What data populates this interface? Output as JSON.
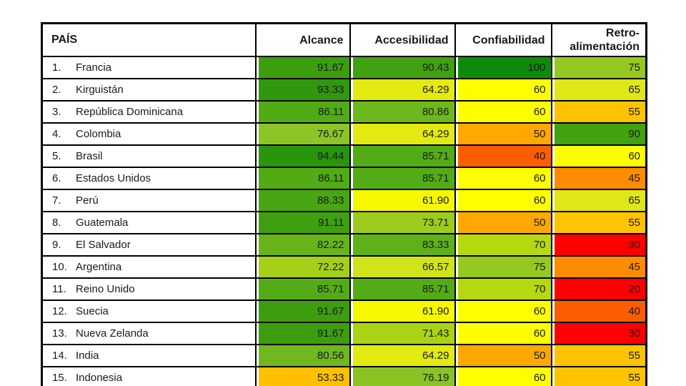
{
  "page": {
    "background": "#ffffff"
  },
  "table": {
    "headers": [
      {
        "label": "PAÍS"
      },
      {
        "label": "Alcance"
      },
      {
        "label": "Accesibilidad"
      },
      {
        "label": "Confiabilidad"
      },
      {
        "label": "Retro-alimentación"
      }
    ],
    "rows": [
      {
        "rank": "1.",
        "country": "Francia",
        "values": [
          "91.67",
          "90.43",
          "100",
          "75"
        ],
        "colors": [
          "#3C9E0F",
          "#41A110",
          "#0E8B0B",
          "#95C921"
        ]
      },
      {
        "rank": "2.",
        "country": "Kirguistán",
        "values": [
          "93.33",
          "64.29",
          "60",
          "65"
        ],
        "colors": [
          "#30980D",
          "#E3EA12",
          "#FEFE00",
          "#DFE717"
        ]
      },
      {
        "rank": "3.",
        "country": "República Dominicana",
        "values": [
          "86.11",
          "80.86",
          "60",
          "55"
        ],
        "colors": [
          "#51AB15",
          "#6DB81D",
          "#FEFE00",
          "#FEC301"
        ]
      },
      {
        "rank": "4.",
        "country": "Colombia",
        "values": [
          "76.67",
          "64.29",
          "50",
          "90"
        ],
        "colors": [
          "#8CC525",
          "#E3EA12",
          "#FFA800",
          "#42A210"
        ]
      },
      {
        "rank": "5.",
        "country": "Brasil",
        "values": [
          "94.44",
          "85.71",
          "40",
          "60"
        ],
        "colors": [
          "#28950C",
          "#53AC16",
          "#FB5E00",
          "#FEFE00"
        ]
      },
      {
        "rank": "6.",
        "country": "Estados Unidos",
        "values": [
          "86.11",
          "85.71",
          "60",
          "45"
        ],
        "colors": [
          "#51AB15",
          "#53AC16",
          "#FEFE00",
          "#FD8C00"
        ]
      },
      {
        "rank": "7.",
        "country": "Perú",
        "values": [
          "88.33",
          "61.90",
          "60",
          "65"
        ],
        "colors": [
          "#48A612",
          "#F6F701",
          "#FEFE00",
          "#DFE717"
        ]
      },
      {
        "rank": "8.",
        "country": "Guatemala",
        "values": [
          "91.11",
          "73.71",
          "50",
          "55"
        ],
        "colors": [
          "#3E9F10",
          "#9CCC1D",
          "#FFA800",
          "#FEC301"
        ]
      },
      {
        "rank": "9.",
        "country": "El Salvador",
        "values": [
          "82.22",
          "83.33",
          "70",
          "30"
        ],
        "colors": [
          "#66B41A",
          "#5FB119",
          "#B5D80E",
          "#FE0000"
        ]
      },
      {
        "rank": "10.",
        "country": "Argentina",
        "values": [
          "72.22",
          "66.57",
          "75",
          "45"
        ],
        "colors": [
          "#A5D018",
          "#D3E31A",
          "#95C921",
          "#FD8C00"
        ]
      },
      {
        "rank": "11.",
        "country": "Reino Unido",
        "values": [
          "85.71",
          "85.71",
          "70",
          "20"
        ],
        "colors": [
          "#53AC16",
          "#53AC16",
          "#B5D80E",
          "#FE0000"
        ]
      },
      {
        "rank": "12.",
        "country": "Suecia",
        "values": [
          "91.67",
          "61.90",
          "60",
          "40"
        ],
        "colors": [
          "#3C9E0F",
          "#F6F701",
          "#FEFE00",
          "#FB5E00"
        ]
      },
      {
        "rank": "13.",
        "country": "Nueva Zelanda",
        "values": [
          "91.67",
          "71.43",
          "60",
          "30"
        ],
        "colors": [
          "#3C9E0F",
          "#ABD315",
          "#FEFE00",
          "#FE0000"
        ]
      },
      {
        "rank": "14.",
        "country": "India",
        "values": [
          "80.56",
          "64.29",
          "50",
          "55"
        ],
        "colors": [
          "#6FB91E",
          "#E3EA12",
          "#FFA800",
          "#FEC301"
        ]
      },
      {
        "rank": "15.",
        "country": "Indonesia",
        "values": [
          "53.33",
          "76.19",
          "60",
          "55"
        ],
        "colors": [
          "#FFC000",
          "#89C324",
          "#FEFE00",
          "#FEC301"
        ]
      }
    ]
  },
  "chart_data": {
    "type": "table",
    "title": "",
    "columns": [
      "PAÍS",
      "Alcance",
      "Accesibilidad",
      "Confiabilidad",
      "Retro-alimentación"
    ],
    "rows": [
      [
        "Francia",
        91.67,
        90.43,
        100,
        75
      ],
      [
        "Kirguistán",
        93.33,
        64.29,
        60,
        65
      ],
      [
        "República Dominicana",
        86.11,
        80.86,
        60,
        55
      ],
      [
        "Colombia",
        76.67,
        64.29,
        50,
        90
      ],
      [
        "Brasil",
        94.44,
        85.71,
        40,
        60
      ],
      [
        "Estados Unidos",
        86.11,
        85.71,
        60,
        45
      ],
      [
        "Perú",
        88.33,
        61.9,
        60,
        65
      ],
      [
        "Guatemala",
        91.11,
        73.71,
        50,
        55
      ],
      [
        "El Salvador",
        82.22,
        83.33,
        70,
        30
      ],
      [
        "Argentina",
        72.22,
        66.57,
        75,
        45
      ],
      [
        "Reino Unido",
        85.71,
        85.71,
        70,
        20
      ],
      [
        "Suecia",
        91.67,
        61.9,
        60,
        40
      ],
      [
        "Nueva Zelanda",
        91.67,
        71.43,
        60,
        30
      ],
      [
        "India",
        80.56,
        64.29,
        50,
        55
      ],
      [
        "Indonesia",
        53.33,
        76.19,
        60,
        55
      ]
    ],
    "color_scale": {
      "style": "red-yellow-green heatmap",
      "low": "#FE0000",
      "mid": "#FEFE00",
      "high": "#0E8B0B",
      "approx_domain": [
        20,
        60,
        100
      ]
    },
    "layout": {
      "grid": "black 2px cell borders",
      "value_alignment": "right"
    }
  }
}
